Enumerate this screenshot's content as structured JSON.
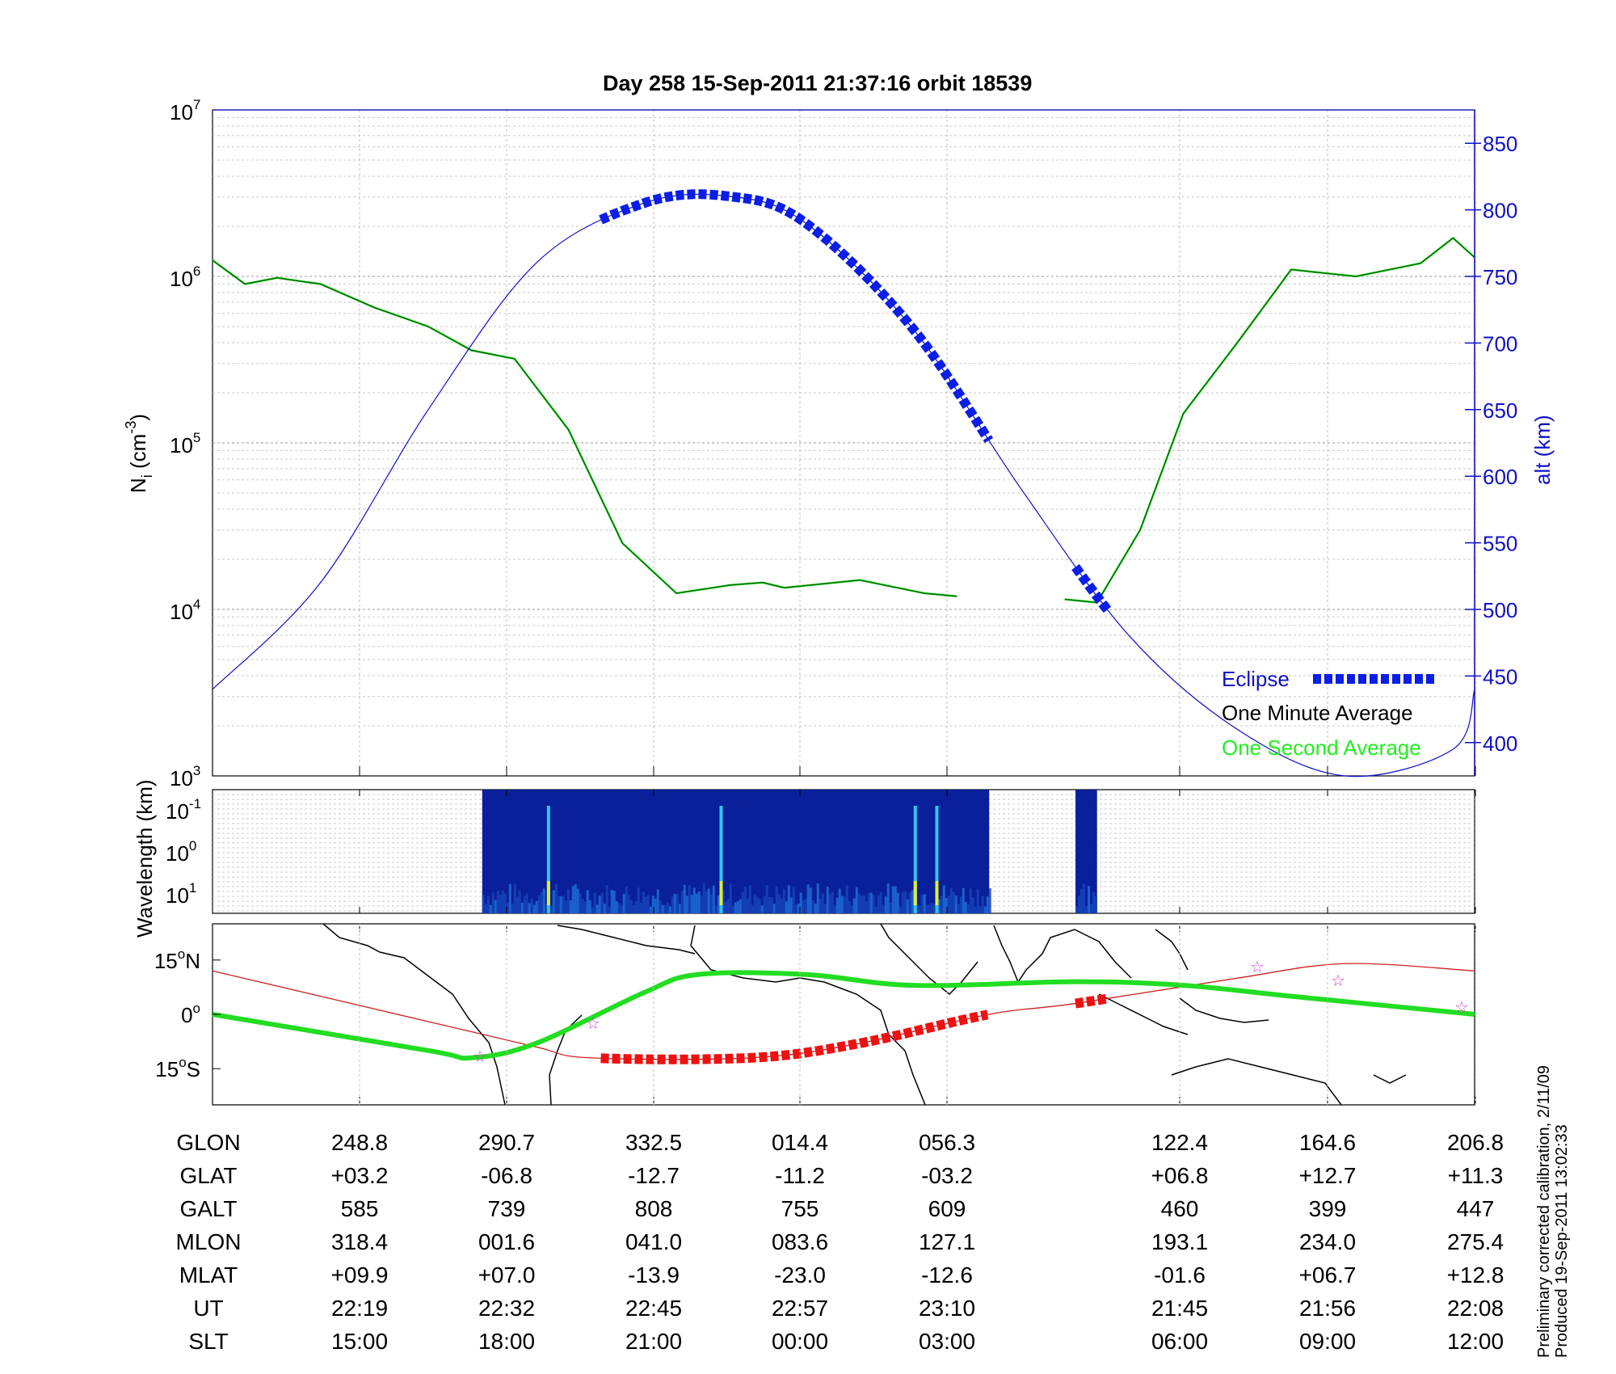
{
  "title": "Day 258  15-Sep-2011 21:37:16   orbit 18539",
  "panel1": {
    "ylabel_main": "N",
    "ylabel_sub": "i",
    "ylabel_unit_pre": " (cm",
    "ylabel_unit_exp": "-3",
    "ylabel_unit_post": ")",
    "y_ticks": [
      {
        "base": "10",
        "exp": "7"
      },
      {
        "base": "10",
        "exp": "6"
      },
      {
        "base": "10",
        "exp": "5"
      },
      {
        "base": "10",
        "exp": "4"
      },
      {
        "base": "10",
        "exp": "3"
      }
    ],
    "right_ylabel": "alt (km)",
    "right_ticks": [
      "850",
      "800",
      "750",
      "700",
      "650",
      "600",
      "550",
      "500",
      "450",
      "400"
    ],
    "legend": {
      "eclipse": "Eclipse",
      "one_minute": "One Minute Average",
      "one_second": "One Second Average"
    },
    "colors": {
      "altitude": "#1010c8",
      "eclipse": "#0a1ee6",
      "one_minute": "#0a6a0a",
      "one_second": "#22ee22"
    }
  },
  "panel2": {
    "ylabel": "Wavelength (km)",
    "y_ticks": [
      {
        "base": "10",
        "exp": "-1"
      },
      {
        "base": "10",
        "exp": "0"
      },
      {
        "base": "10",
        "exp": "1"
      }
    ]
  },
  "panel3": {
    "lat_ticks": [
      {
        "num": "15",
        "deg": "o",
        "hem": "N"
      },
      {
        "num": "0",
        "deg": "o",
        "hem": ""
      },
      {
        "num": "15",
        "deg": "o",
        "hem": "S"
      }
    ],
    "colors": {
      "magnetic_equator": "#22dd22",
      "track": "#cc2222",
      "eclipse_track": "#ee1111",
      "stars": "#cc44cc"
    }
  },
  "table": {
    "rows": [
      {
        "name": "GLON",
        "values": [
          "248.8",
          "290.7",
          "332.5",
          "014.4",
          "056.3",
          "122.4",
          "164.6",
          "206.8"
        ]
      },
      {
        "name": "GLAT",
        "values": [
          "+03.2",
          "-06.8",
          "-12.7",
          "-11.2",
          "-03.2",
          "+06.8",
          "+12.7",
          "+11.3"
        ]
      },
      {
        "name": "GALT",
        "values": [
          "585",
          "739",
          "808",
          "755",
          "609",
          "460",
          "399",
          "447"
        ]
      },
      {
        "name": "MLON",
        "values": [
          "318.4",
          "001.6",
          "041.0",
          "083.6",
          "127.1",
          "193.1",
          "234.0",
          "275.4"
        ]
      },
      {
        "name": "MLAT",
        "values": [
          "+09.9",
          "+07.0",
          "-13.9",
          "-23.0",
          "-12.6",
          "-01.6",
          "+06.7",
          "+12.8"
        ]
      },
      {
        "name": "UT",
        "values": [
          "22:19",
          "22:32",
          "22:45",
          "22:57",
          "23:10",
          "21:45",
          "21:56",
          "22:08"
        ]
      },
      {
        "name": "SLT",
        "values": [
          "15:00",
          "18:00",
          "21:00",
          "00:00",
          "03:00",
          "06:00",
          "09:00",
          "12:00"
        ]
      }
    ]
  },
  "notes": {
    "calibration": "Preliminary corrected calibration, 2/11/09",
    "produced": "Produced 19-Sep-2011 13:02:33"
  },
  "chart_data": [
    {
      "type": "line",
      "title": "Day 258  15-Sep-2011 21:37:16   orbit 18539",
      "x_categories_slt": [
        "15:00",
        "18:00",
        "21:00",
        "00:00",
        "03:00",
        "06:00",
        "09:00",
        "12:00"
      ],
      "ylabel": "Ni (cm-3)",
      "yscale": "log",
      "ylim": [
        1000,
        10000000
      ],
      "y2label": "alt (km)",
      "y2lim": [
        375,
        875
      ],
      "series": [
        {
          "name": "One Minute Average",
          "axis": "left",
          "points": [
            [
              0,
              1250000
            ],
            [
              0.03,
              900000
            ],
            [
              0.06,
              980000
            ],
            [
              0.1,
              900000
            ],
            [
              0.15,
              650000
            ],
            [
              0.2,
              500000
            ],
            [
              0.24,
              360000
            ],
            [
              0.28,
              320000
            ],
            [
              0.33,
              120000
            ],
            [
              0.38,
              25000
            ],
            [
              0.43,
              12500
            ],
            [
              0.48,
              14000
            ],
            [
              0.51,
              14500
            ],
            [
              0.53,
              13500
            ],
            [
              0.6,
              15000
            ],
            [
              0.66,
              12500
            ],
            [
              0.69,
              12000
            ],
            [
              0.72,
              null
            ],
            [
              0.79,
              11500
            ],
            [
              0.82,
              11000
            ],
            [
              0.86,
              30000
            ],
            [
              0.9,
              150000
            ],
            [
              0.95,
              400000
            ],
            [
              1.0,
              1100000
            ],
            [
              1.06,
              1000000
            ],
            [
              1.12,
              1200000
            ],
            [
              1.15,
              1700000
            ],
            [
              1.17,
              1300000
            ]
          ]
        },
        {
          "name": "Altitude",
          "axis": "right",
          "points": [
            [
              0,
              440
            ],
            [
              0.1,
              520
            ],
            [
              0.2,
              650
            ],
            [
              0.3,
              760
            ],
            [
              0.4,
              805
            ],
            [
              0.48,
              810
            ],
            [
              0.55,
              790
            ],
            [
              0.65,
              710
            ],
            [
              0.75,
              590
            ],
            [
              0.85,
              480
            ],
            [
              0.95,
              410
            ],
            [
              1.05,
              375
            ],
            [
              1.15,
              395
            ],
            [
              1.17,
              440
            ]
          ]
        },
        {
          "name": "Eclipse",
          "axis": "right",
          "segments": [
            [
              0.36,
              0.72
            ],
            [
              0.8,
              0.83
            ]
          ]
        }
      ]
    },
    {
      "type": "heatmap",
      "ylabel": "Wavelength (km)",
      "y_ticks": [
        "10-1",
        "100",
        "101"
      ],
      "data_coverage": [
        [
          0.25,
          0.72
        ],
        [
          0.8,
          0.82
        ]
      ]
    },
    {
      "type": "line",
      "lat_ticks": [
        "15N",
        "0",
        "15S"
      ],
      "ylim": [
        -25,
        25
      ],
      "series": [
        {
          "name": "Magnetic equator",
          "points": [
            [
              0,
              0
            ],
            [
              0.2,
              -10
            ],
            [
              0.24,
              -12
            ],
            [
              0.3,
              -8
            ],
            [
              0.4,
              6
            ],
            [
              0.45,
              11
            ],
            [
              0.55,
              11
            ],
            [
              0.65,
              8
            ],
            [
              0.8,
              9
            ],
            [
              0.9,
              8
            ],
            [
              1.0,
              5
            ],
            [
              1.17,
              0
            ]
          ]
        },
        {
          "name": "Track",
          "points": [
            [
              0,
              12
            ],
            [
              0.2,
              -2
            ],
            [
              0.3,
              -9
            ],
            [
              0.35,
              -12
            ],
            [
              0.5,
              -12
            ],
            [
              0.6,
              -8
            ],
            [
              0.72,
              0
            ],
            [
              0.8,
              3
            ],
            [
              0.95,
              10
            ],
            [
              1.05,
              14
            ],
            [
              1.17,
              12
            ]
          ]
        }
      ]
    }
  ]
}
